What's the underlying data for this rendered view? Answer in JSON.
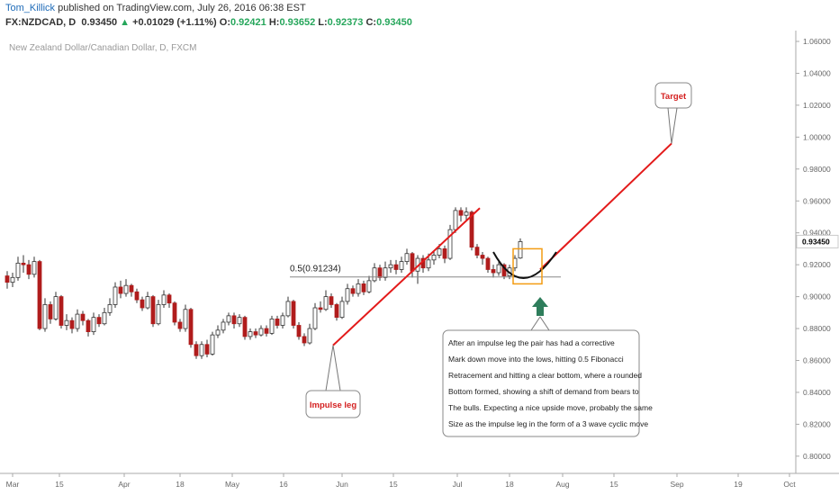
{
  "header": {
    "author": "Tom_Killick",
    "published_text": "published on TradingView.com, July 26, 2016 06:38 EST",
    "symbol": "FX:NZDCAD, D",
    "last": "0.93450",
    "change": "+0.01029 (+1.11%)",
    "o_label": "O:",
    "o_value": "0.92421",
    "h_label": "H:",
    "h_value": "0.93652",
    "l_label": "L:",
    "l_value": "0.92373",
    "c_label": "C:",
    "c_value": "0.93450"
  },
  "chart_data": {
    "type": "candlestick",
    "title": "New Zealand Dollar/Canadian Dollar, D, FXCM",
    "y_ticks": [
      "1.06000",
      "1.04000",
      "1.02000",
      "1.00000",
      "0.98000",
      "0.96000",
      "0.94000",
      "0.92000",
      "0.90000",
      "0.88000",
      "0.86000",
      "0.84000",
      "0.82000",
      "0.80000"
    ],
    "ylim": [
      0.79,
      1.07
    ],
    "current_price": "0.93450",
    "x_ticks": [
      "Mar",
      "15",
      "Apr",
      "18",
      "May",
      "16",
      "Jun",
      "15",
      "Jul",
      "18",
      "Aug",
      "15",
      "Sep",
      "19",
      "Oct"
    ],
    "colors": {
      "up": "#ffffff",
      "down": "#b01c1c",
      "wick": "#333333",
      "trend": "#e31a1a",
      "fib": "#888888",
      "box": "#f39c12",
      "arrow": "#2e7d5b",
      "target_text": "#d42020"
    },
    "candles": [
      [
        0.913,
        0.909,
        0.916,
        0.905
      ],
      [
        0.909,
        0.912,
        0.915,
        0.906
      ],
      [
        0.912,
        0.921,
        0.925,
        0.91
      ],
      [
        0.921,
        0.92,
        0.926,
        0.915
      ],
      [
        0.92,
        0.914,
        0.923,
        0.911
      ],
      [
        0.914,
        0.922,
        0.925,
        0.912
      ],
      [
        0.922,
        0.88,
        0.923,
        0.879
      ],
      [
        0.88,
        0.895,
        0.899,
        0.878
      ],
      [
        0.895,
        0.886,
        0.897,
        0.883
      ],
      [
        0.886,
        0.9,
        0.903,
        0.885
      ],
      [
        0.9,
        0.882,
        0.901,
        0.88
      ],
      [
        0.882,
        0.885,
        0.889,
        0.879
      ],
      [
        0.885,
        0.88,
        0.887,
        0.877
      ],
      [
        0.88,
        0.889,
        0.892,
        0.878
      ],
      [
        0.889,
        0.885,
        0.891,
        0.882
      ],
      [
        0.885,
        0.878,
        0.886,
        0.875
      ],
      [
        0.878,
        0.887,
        0.89,
        0.876
      ],
      [
        0.887,
        0.883,
        0.889,
        0.881
      ],
      [
        0.883,
        0.89,
        0.893,
        0.882
      ],
      [
        0.89,
        0.895,
        0.899,
        0.888
      ],
      [
        0.895,
        0.906,
        0.909,
        0.893
      ],
      [
        0.906,
        0.902,
        0.91,
        0.899
      ],
      [
        0.902,
        0.907,
        0.911,
        0.9
      ],
      [
        0.907,
        0.903,
        0.908,
        0.9
      ],
      [
        0.903,
        0.898,
        0.905,
        0.896
      ],
      [
        0.898,
        0.893,
        0.9,
        0.891
      ],
      [
        0.893,
        0.9,
        0.903,
        0.892
      ],
      [
        0.9,
        0.883,
        0.901,
        0.881
      ],
      [
        0.883,
        0.895,
        0.898,
        0.882
      ],
      [
        0.895,
        0.901,
        0.904,
        0.893
      ],
      [
        0.901,
        0.896,
        0.902,
        0.893
      ],
      [
        0.896,
        0.884,
        0.897,
        0.882
      ],
      [
        0.884,
        0.88,
        0.886,
        0.878
      ],
      [
        0.88,
        0.892,
        0.895,
        0.878
      ],
      [
        0.892,
        0.87,
        0.893,
        0.868
      ],
      [
        0.87,
        0.863,
        0.872,
        0.861
      ],
      [
        0.863,
        0.87,
        0.872,
        0.861
      ],
      [
        0.87,
        0.864,
        0.873,
        0.862
      ],
      [
        0.864,
        0.876,
        0.878,
        0.863
      ],
      [
        0.876,
        0.879,
        0.882,
        0.874
      ],
      [
        0.879,
        0.884,
        0.886,
        0.877
      ],
      [
        0.884,
        0.888,
        0.89,
        0.882
      ],
      [
        0.888,
        0.883,
        0.89,
        0.88
      ],
      [
        0.883,
        0.887,
        0.889,
        0.881
      ],
      [
        0.887,
        0.875,
        0.888,
        0.873
      ],
      [
        0.875,
        0.878,
        0.88,
        0.873
      ],
      [
        0.878,
        0.876,
        0.88,
        0.874
      ],
      [
        0.876,
        0.88,
        0.882,
        0.875
      ],
      [
        0.88,
        0.877,
        0.882,
        0.875
      ],
      [
        0.877,
        0.886,
        0.888,
        0.876
      ],
      [
        0.886,
        0.882,
        0.888,
        0.88
      ],
      [
        0.882,
        0.888,
        0.89,
        0.88
      ],
      [
        0.888,
        0.897,
        0.9,
        0.887
      ],
      [
        0.897,
        0.882,
        0.898,
        0.88
      ],
      [
        0.882,
        0.875,
        0.884,
        0.873
      ],
      [
        0.875,
        0.871,
        0.877,
        0.869
      ],
      [
        0.871,
        0.88,
        0.883,
        0.87
      ],
      [
        0.88,
        0.893,
        0.896,
        0.879
      ],
      [
        0.893,
        0.892,
        0.897,
        0.89
      ],
      [
        0.892,
        0.9,
        0.904,
        0.891
      ],
      [
        0.9,
        0.895,
        0.902,
        0.893
      ],
      [
        0.895,
        0.887,
        0.896,
        0.885
      ],
      [
        0.887,
        0.897,
        0.9,
        0.886
      ],
      [
        0.897,
        0.905,
        0.908,
        0.895
      ],
      [
        0.905,
        0.902,
        0.907,
        0.9
      ],
      [
        0.902,
        0.908,
        0.911,
        0.9
      ],
      [
        0.908,
        0.903,
        0.91,
        0.901
      ],
      [
        0.903,
        0.91,
        0.913,
        0.902
      ],
      [
        0.91,
        0.918,
        0.921,
        0.909
      ],
      [
        0.918,
        0.912,
        0.92,
        0.91
      ],
      [
        0.912,
        0.918,
        0.922,
        0.91
      ],
      [
        0.918,
        0.92,
        0.923,
        0.915
      ],
      [
        0.92,
        0.917,
        0.923,
        0.914
      ],
      [
        0.917,
        0.922,
        0.925,
        0.915
      ],
      [
        0.922,
        0.927,
        0.93,
        0.92
      ],
      [
        0.927,
        0.916,
        0.928,
        0.912
      ],
      [
        0.916,
        0.924,
        0.926,
        0.908
      ],
      [
        0.924,
        0.918,
        0.926,
        0.915
      ],
      [
        0.918,
        0.923,
        0.927,
        0.916
      ],
      [
        0.923,
        0.926,
        0.929,
        0.92
      ],
      [
        0.926,
        0.93,
        0.933,
        0.924
      ],
      [
        0.93,
        0.924,
        0.932,
        0.921
      ],
      [
        0.924,
        0.942,
        0.945,
        0.923
      ],
      [
        0.942,
        0.954,
        0.956,
        0.94
      ],
      [
        0.954,
        0.951,
        0.956,
        0.947
      ],
      [
        0.951,
        0.953,
        0.956,
        0.948
      ],
      [
        0.953,
        0.931,
        0.954,
        0.929
      ],
      [
        0.931,
        0.926,
        0.933,
        0.924
      ],
      [
        0.926,
        0.924,
        0.928,
        0.92
      ],
      [
        0.924,
        0.917,
        0.925,
        0.915
      ],
      [
        0.917,
        0.915,
        0.92,
        0.912
      ],
      [
        0.915,
        0.92,
        0.922,
        0.913
      ],
      [
        0.92,
        0.913,
        0.921,
        0.911
      ],
      [
        0.913,
        0.918,
        0.92,
        0.911
      ],
      [
        0.918,
        0.924,
        0.926,
        0.916
      ],
      [
        0.9242,
        0.9345,
        0.9365,
        0.9237
      ]
    ],
    "fib_label": "0.5(0.91234)",
    "fib_level": 0.91234,
    "impulse_label": "Impulse leg",
    "target_label": "Target",
    "annotation_lines": [
      "After an impulse leg the pair has had a corrective",
      "Mark down move into the lows, hitting 0.5 Fibonacci",
      "Retracement and hitting a clear bottom, where a rounded",
      "Bottom formed, showing a shift of demand from bears to",
      "The bulls. Expecting a nice upside move, probably the same",
      "Size as the impulse leg in the form of a 3 wave cyclic move"
    ]
  }
}
